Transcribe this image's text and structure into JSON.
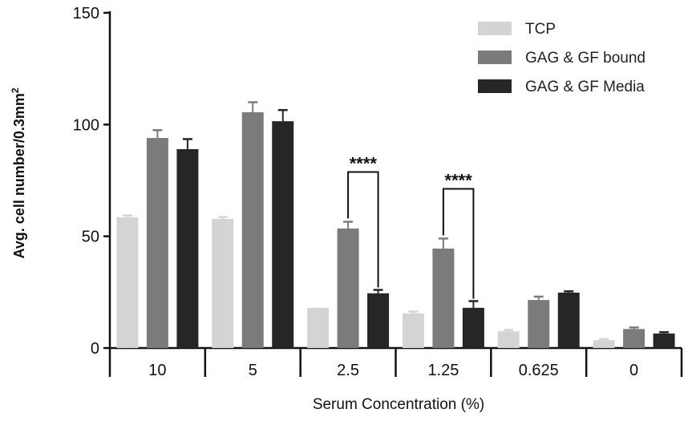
{
  "chart_data": {
    "type": "bar",
    "title": "",
    "xlabel": "Serum Concentration (%)",
    "ylabel": "Avg. cell number/0.3mm",
    "ylabel_superscript": "2",
    "ylim": [
      0,
      150
    ],
    "yticks": [
      0,
      50,
      100,
      150
    ],
    "categories": [
      "10",
      "5",
      "2.5",
      "1.25",
      "0.625",
      "0"
    ],
    "legend_position": "top-right",
    "series": [
      {
        "name": "TCP",
        "color": "#d4d4d4",
        "values": [
          58.5,
          57.8,
          18,
          15.5,
          7.5,
          3.5
        ],
        "errors": [
          0.8,
          0.8,
          0,
          0.8,
          0.6,
          0.5
        ]
      },
      {
        "name": "GAG & GF bound",
        "color": "#7b7b7b",
        "values": [
          94,
          105.5,
          53.5,
          44.5,
          21.5,
          8.5
        ],
        "errors": [
          3.5,
          4.5,
          3,
          4.5,
          1.5,
          0.7
        ]
      },
      {
        "name": "GAG & GF Media",
        "color": "#262626",
        "values": [
          89,
          101.5,
          24.5,
          18,
          24.8,
          6.5
        ],
        "errors": [
          4.5,
          5,
          1.5,
          3,
          0.6,
          0.6
        ]
      }
    ],
    "annotations": [
      {
        "text": "****",
        "category_index": 2,
        "from_series": 1,
        "to_series": 2
      },
      {
        "text": "****",
        "category_index": 3,
        "from_series": 1,
        "to_series": 2
      }
    ]
  }
}
